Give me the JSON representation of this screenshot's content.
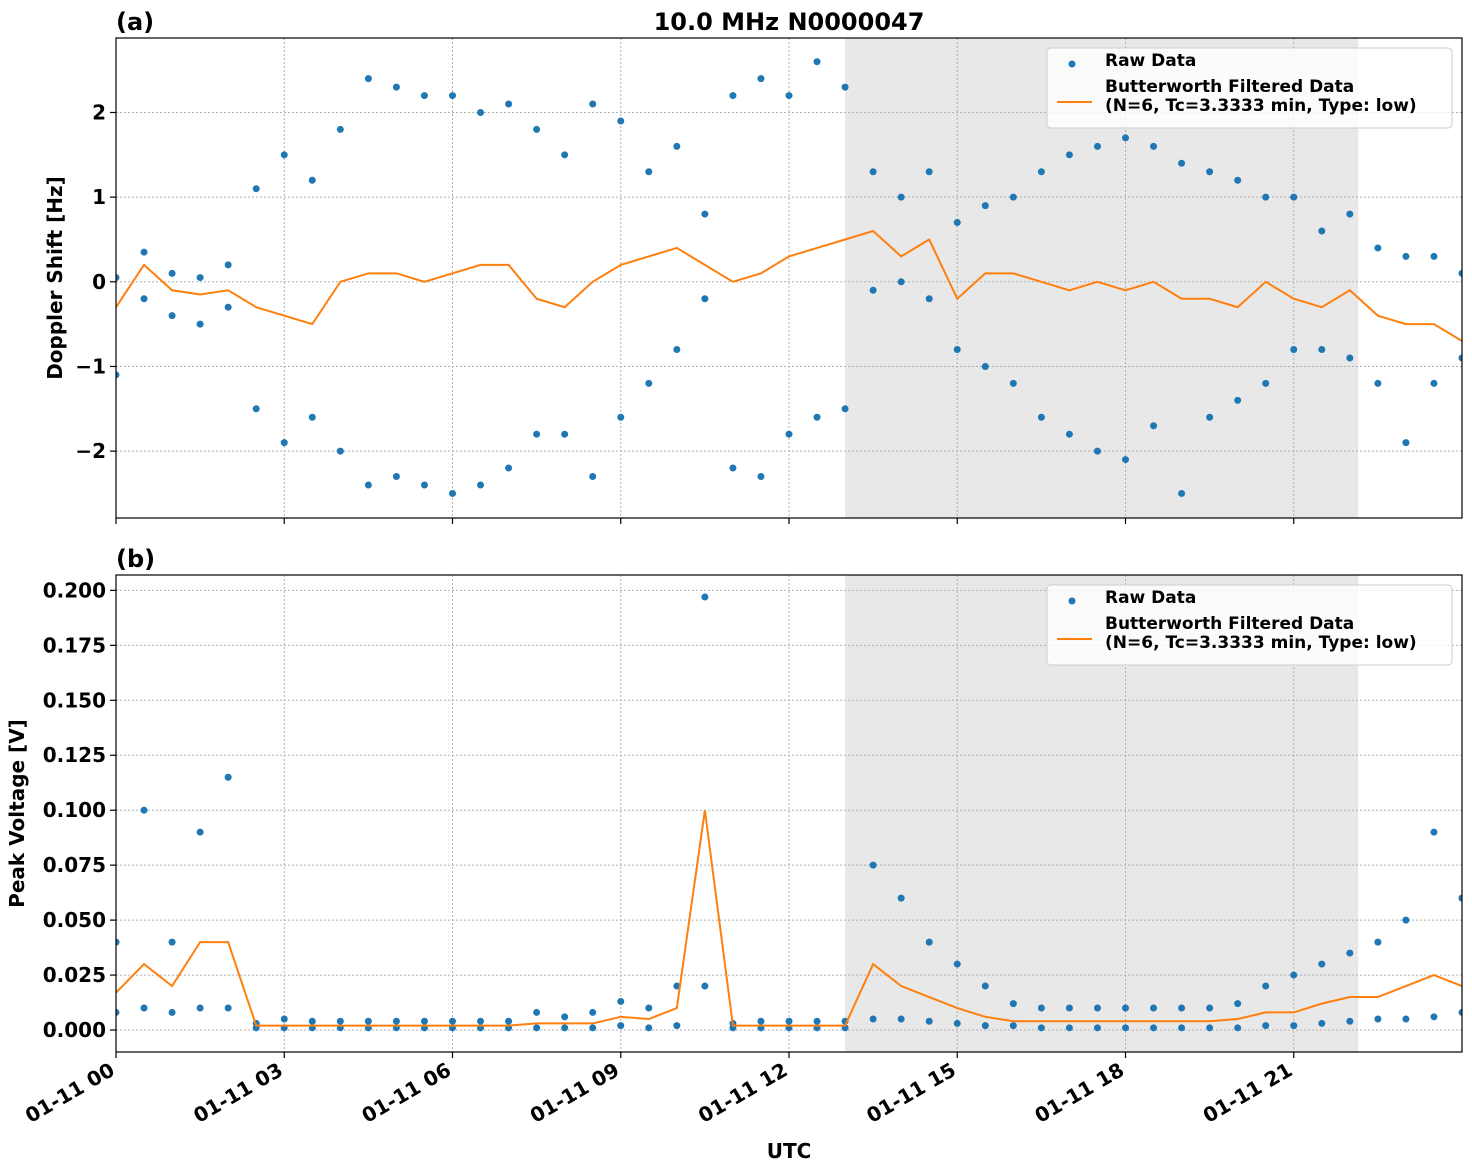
{
  "chart_data": [
    {
      "type": "scatter",
      "title": "10.0 MHz N0000047",
      "panel_label": "(a)",
      "ylabel": "Doppler Shift [Hz]",
      "xlim": [
        0,
        24
      ],
      "xticks": [
        0,
        3,
        6,
        9,
        12,
        15,
        18,
        21
      ],
      "ylim": [
        -2.79,
        2.88
      ],
      "yticks": [
        {
          "value": -2,
          "label": "−2"
        },
        {
          "value": -1,
          "label": "−1"
        },
        0,
        1,
        2
      ],
      "grid": true,
      "legend": "upper right",
      "shaded_span": [
        13,
        22.15
      ],
      "shade_color": "#e8e8e8",
      "series": [
        {
          "name": "Raw Data",
          "type": "scatter",
          "color": "#1f77b4",
          "x": [
            0,
            0,
            0.5,
            0.5,
            1,
            1,
            1.5,
            1.5,
            2,
            2,
            2.5,
            2.5,
            3,
            3,
            3.5,
            3.5,
            4,
            4,
            4.5,
            4.5,
            5,
            5,
            5.5,
            5.5,
            6,
            6,
            6.5,
            6.5,
            7,
            7,
            7.5,
            7.5,
            8,
            8,
            8.5,
            8.5,
            9,
            9,
            9.5,
            9.5,
            10,
            10,
            10.5,
            10.5,
            11,
            11,
            11.5,
            11.5,
            12,
            12,
            12.5,
            12.5,
            13,
            13,
            13.5,
            13.5,
            14,
            14,
            14.5,
            14.5,
            15,
            15,
            15.5,
            15.5,
            16,
            16,
            16.5,
            16.5,
            17,
            17,
            17.5,
            17.5,
            18,
            18,
            18.5,
            18.5,
            19,
            19,
            19.5,
            19.5,
            20,
            20,
            20.5,
            20.5,
            21,
            21,
            21.5,
            21.5,
            22,
            22,
            22.5,
            22.5,
            23,
            23,
            23.5,
            23.5,
            24,
            24
          ],
          "values": [
            0.05,
            -1.1,
            0.35,
            -0.2,
            0.1,
            -0.4,
            0.05,
            -0.5,
            0.2,
            -0.3,
            1.1,
            -1.5,
            1.5,
            -1.9,
            1.2,
            -1.6,
            1.8,
            -2.0,
            2.4,
            -2.4,
            2.3,
            -2.3,
            2.2,
            -2.4,
            2.2,
            -2.5,
            2.0,
            -2.4,
            2.1,
            -2.2,
            1.8,
            -1.8,
            1.5,
            -1.8,
            2.1,
            -2.3,
            1.9,
            -1.6,
            1.3,
            -1.2,
            1.6,
            -0.8,
            0.8,
            -0.2,
            2.2,
            -2.2,
            2.4,
            -2.3,
            2.2,
            -1.8,
            2.6,
            -1.6,
            2.3,
            -1.5,
            1.3,
            -0.1,
            1.0,
            0.0,
            1.3,
            -0.2,
            0.7,
            -0.8,
            0.9,
            -1.0,
            1.0,
            -1.2,
            1.3,
            -1.6,
            1.5,
            -1.8,
            1.6,
            -2.0,
            1.7,
            -2.1,
            1.6,
            -1.7,
            1.4,
            -2.5,
            1.3,
            -1.6,
            1.2,
            -1.4,
            1.0,
            -1.2,
            1.0,
            -0.8,
            0.6,
            -0.8,
            0.8,
            -0.9,
            0.4,
            -1.2,
            0.3,
            -1.9,
            0.3,
            -1.2,
            0.1,
            -0.9
          ]
        },
        {
          "name": "Butterworth Filtered Data\n(N=6, Tc=3.3333 min, Type: low)",
          "type": "line",
          "color": "#ff7f0e",
          "x": [
            0,
            0.5,
            1,
            1.5,
            2,
            2.5,
            3,
            3.5,
            4,
            4.5,
            5,
            5.5,
            6,
            6.5,
            7,
            7.5,
            8,
            8.5,
            9,
            9.5,
            10,
            10.5,
            11,
            11.5,
            12,
            12.5,
            13,
            13.5,
            14,
            14.5,
            15,
            15.5,
            16,
            16.5,
            17,
            17.5,
            18,
            18.5,
            19,
            19.5,
            20,
            20.5,
            21,
            21.5,
            22,
            22.5,
            23,
            23.5,
            24
          ],
          "values": [
            -0.3,
            0.2,
            -0.1,
            -0.15,
            -0.1,
            -0.3,
            -0.4,
            -0.5,
            0.0,
            0.1,
            0.1,
            0.0,
            0.1,
            0.2,
            0.2,
            -0.2,
            -0.3,
            0.0,
            0.2,
            0.3,
            0.4,
            0.2,
            0.0,
            0.1,
            0.3,
            0.4,
            0.5,
            0.6,
            0.3,
            0.5,
            -0.2,
            0.1,
            0.1,
            0.0,
            -0.1,
            0.0,
            -0.1,
            0.0,
            -0.2,
            -0.2,
            -0.3,
            0.0,
            -0.2,
            -0.3,
            -0.1,
            -0.4,
            -0.5,
            -0.5,
            -0.7
          ]
        }
      ]
    },
    {
      "type": "scatter",
      "panel_label": "(b)",
      "ylabel": "Peak Voltage [V]",
      "xlabel": "UTC",
      "xlim": [
        0,
        24
      ],
      "xticks": [
        {
          "value": 0,
          "label": "01-11 00"
        },
        {
          "value": 3,
          "label": "01-11 03"
        },
        {
          "value": 6,
          "label": "01-11 06"
        },
        {
          "value": 9,
          "label": "01-11 09"
        },
        {
          "value": 12,
          "label": "01-11 12"
        },
        {
          "value": 15,
          "label": "01-11 15"
        },
        {
          "value": 18,
          "label": "01-11 18"
        },
        {
          "value": 21,
          "label": "01-11 21"
        }
      ],
      "ylim": [
        -0.01,
        0.207
      ],
      "yticks": [
        {
          "value": 0,
          "label": "0.000"
        },
        0.025,
        {
          "value": 0.05,
          "label": "0.050"
        },
        0.075,
        {
          "value": 0.1,
          "label": "0.100"
        },
        0.125,
        {
          "value": 0.15,
          "label": "0.150"
        },
        0.175,
        {
          "value": 0.2,
          "label": "0.200"
        }
      ],
      "grid": true,
      "legend": "upper right",
      "shaded_span": [
        13,
        22.15
      ],
      "shade_color": "#e8e8e8",
      "series": [
        {
          "name": "Raw Data",
          "type": "scatter",
          "color": "#1f77b4",
          "x": [
            0,
            0,
            0.5,
            0.5,
            1,
            1,
            1.5,
            1.5,
            2,
            2,
            2.5,
            2.5,
            3,
            3,
            3.5,
            3.5,
            4,
            4,
            4.5,
            4.5,
            5,
            5,
            5.5,
            5.5,
            6,
            6,
            6.5,
            6.5,
            7,
            7,
            7.5,
            7.5,
            8,
            8,
            8.5,
            8.5,
            9,
            9,
            9.5,
            9.5,
            10,
            10,
            10.5,
            10.5,
            11,
            11,
            11.5,
            11.5,
            12,
            12,
            12.5,
            12.5,
            13,
            13,
            13.5,
            13.5,
            14,
            14,
            14.5,
            14.5,
            15,
            15,
            15.5,
            15.5,
            16,
            16,
            16.5,
            16.5,
            17,
            17,
            17.5,
            17.5,
            18,
            18,
            18.5,
            18.5,
            19,
            19,
            19.5,
            19.5,
            20,
            20,
            20.5,
            20.5,
            21,
            21,
            21.5,
            21.5,
            22,
            22,
            22.5,
            22.5,
            23,
            23,
            23.5,
            23.5,
            24,
            24
          ],
          "values": [
            0.04,
            0.008,
            0.1,
            0.01,
            0.04,
            0.008,
            0.09,
            0.01,
            0.115,
            0.01,
            0.003,
            0.001,
            0.005,
            0.001,
            0.004,
            0.001,
            0.004,
            0.001,
            0.004,
            0.001,
            0.004,
            0.001,
            0.004,
            0.001,
            0.004,
            0.001,
            0.004,
            0.001,
            0.004,
            0.001,
            0.008,
            0.001,
            0.006,
            0.001,
            0.008,
            0.001,
            0.013,
            0.002,
            0.01,
            0.001,
            0.02,
            0.002,
            0.197,
            0.02,
            0.003,
            0.001,
            0.004,
            0.001,
            0.004,
            0.001,
            0.004,
            0.001,
            0.004,
            0.001,
            0.075,
            0.005,
            0.06,
            0.005,
            0.04,
            0.004,
            0.03,
            0.003,
            0.02,
            0.002,
            0.012,
            0.002,
            0.01,
            0.001,
            0.01,
            0.001,
            0.01,
            0.001,
            0.01,
            0.001,
            0.01,
            0.001,
            0.01,
            0.001,
            0.01,
            0.001,
            0.012,
            0.001,
            0.02,
            0.002,
            0.025,
            0.002,
            0.03,
            0.003,
            0.035,
            0.004,
            0.04,
            0.005,
            0.05,
            0.005,
            0.09,
            0.006,
            0.06,
            0.008
          ]
        },
        {
          "name": "Butterworth Filtered Data\n(N=6, Tc=3.3333 min, Type: low)",
          "type": "line",
          "color": "#ff7f0e",
          "x": [
            0,
            0.5,
            1,
            1.5,
            2,
            2.5,
            3,
            3.5,
            4,
            4.5,
            5,
            5.5,
            6,
            6.5,
            7,
            7.5,
            8,
            8.5,
            9,
            9.5,
            10,
            10.5,
            11,
            11.5,
            12,
            12.5,
            13,
            13.5,
            14,
            14.5,
            15,
            15.5,
            16,
            16.5,
            17,
            17.5,
            18,
            18.5,
            19,
            19.5,
            20,
            20.5,
            21,
            21.5,
            22,
            22.5,
            23,
            23.5,
            24
          ],
          "values": [
            0.017,
            0.03,
            0.02,
            0.04,
            0.04,
            0.002,
            0.002,
            0.002,
            0.002,
            0.002,
            0.002,
            0.002,
            0.002,
            0.002,
            0.002,
            0.003,
            0.003,
            0.003,
            0.006,
            0.005,
            0.01,
            0.1,
            0.002,
            0.002,
            0.002,
            0.002,
            0.002,
            0.03,
            0.02,
            0.015,
            0.01,
            0.006,
            0.004,
            0.004,
            0.004,
            0.004,
            0.004,
            0.004,
            0.004,
            0.004,
            0.005,
            0.008,
            0.008,
            0.012,
            0.015,
            0.015,
            0.02,
            0.025,
            0.02
          ]
        }
      ]
    }
  ]
}
